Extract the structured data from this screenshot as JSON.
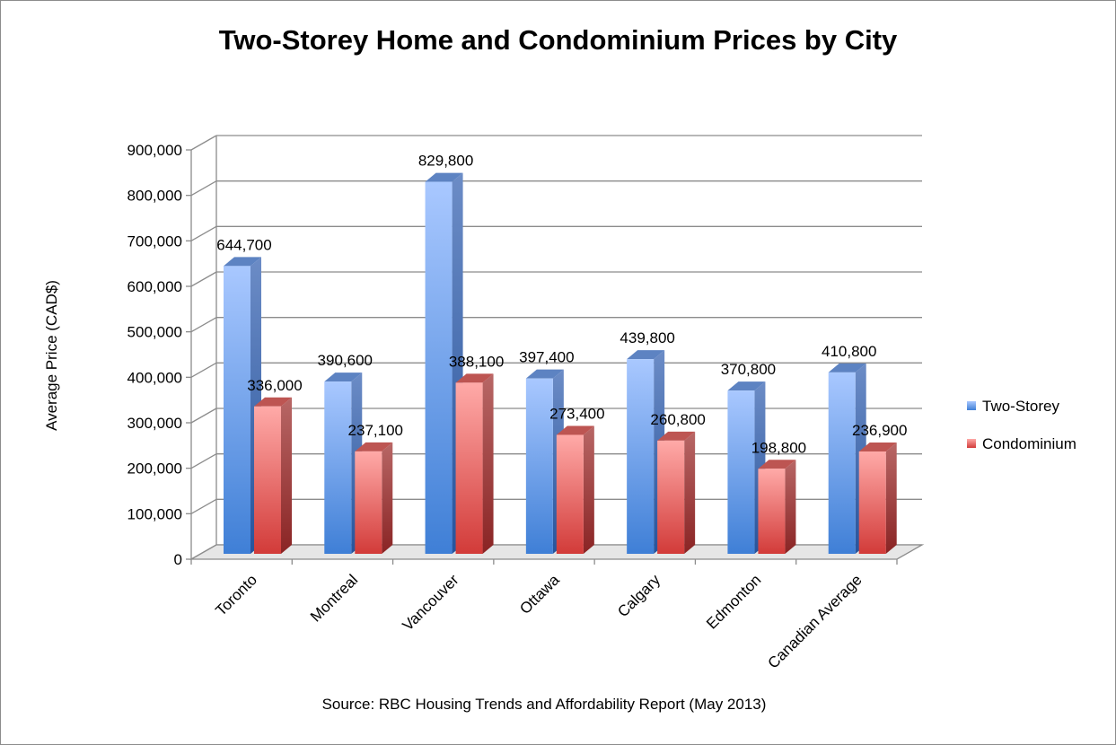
{
  "chart_data": {
    "type": "bar",
    "title": "Two-Storey Home and Condominium Prices by City",
    "ylabel": "Average Price (CAD$)",
    "xlabel": "",
    "source": "Source: RBC Housing Trends and Affordability Report (May 2013)",
    "categories": [
      "Toronto",
      "Montreal",
      "Vancouver",
      "Ottawa",
      "Calgary",
      "Edmonton",
      "Canadian Average"
    ],
    "series": [
      {
        "name": "Two-Storey",
        "values": [
          644700,
          390600,
          829800,
          397400,
          439800,
          370800,
          410800
        ],
        "labels": [
          "644,700",
          "390,600",
          "829,800",
          "397,400",
          "439,800",
          "370,800",
          "410,800"
        ],
        "color": "#4f81bd"
      },
      {
        "name": "Condominium",
        "values": [
          336000,
          237100,
          388100,
          273400,
          260800,
          198800,
          236900
        ],
        "labels": [
          "336,000",
          "237,100",
          "388,100",
          "273,400",
          "260,800",
          "198,800",
          "236,900"
        ],
        "color": "#c0504d"
      }
    ],
    "ylim": [
      0,
      900000
    ],
    "yticks": [
      "0",
      "100,000",
      "200,000",
      "300,000",
      "400,000",
      "500,000",
      "600,000",
      "700,000",
      "800,000",
      "900,000"
    ],
    "grid": true,
    "legend": "right",
    "style": "3d"
  }
}
